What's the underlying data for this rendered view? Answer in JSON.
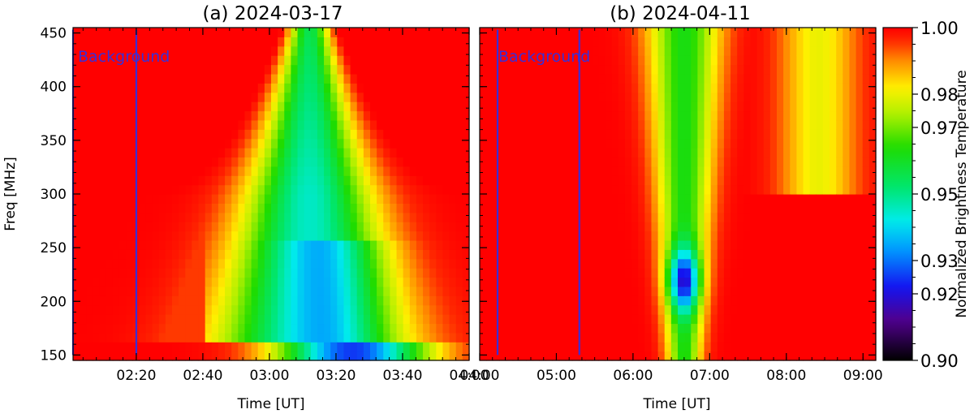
{
  "chart_data": [
    {
      "type": "heatmap",
      "title": "(a) 2024-03-17",
      "xlabel": "Time [UT]",
      "ylabel": "Freq [MHz]",
      "xlim_minutes": [
        121,
        240
      ],
      "ylim": [
        145,
        455
      ],
      "x_ticks": [
        {
          "value": 140,
          "label": "02:20"
        },
        {
          "value": 160,
          "label": "02:40"
        },
        {
          "value": 180,
          "label": "03:00"
        },
        {
          "value": 200,
          "label": "03:20"
        },
        {
          "value": 220,
          "label": "03:40"
        },
        {
          "value": 240,
          "label": "04:00"
        }
      ],
      "y_ticks": [
        150,
        200,
        250,
        300,
        350,
        400,
        450
      ],
      "annotation": {
        "text": "Background",
        "interval_minutes": [
          121,
          140
        ]
      },
      "background_lines_minutes": [
        121,
        140
      ],
      "dip": {
        "center_minutes": 192,
        "half_width_minutes": 28,
        "min_value": 0.93,
        "low_freq_min_value": 0.925
      }
    },
    {
      "type": "heatmap",
      "title": "(b) 2024-04-11",
      "xlabel": "Time [UT]",
      "ylabel": "",
      "xlim_minutes": [
        240,
        550
      ],
      "ylim": [
        145,
        455
      ],
      "x_ticks": [
        {
          "value": 240,
          "label": "04:00"
        },
        {
          "value": 300,
          "label": "05:00"
        },
        {
          "value": 360,
          "label": "06:00"
        },
        {
          "value": 420,
          "label": "07:00"
        },
        {
          "value": 480,
          "label": "08:00"
        },
        {
          "value": 540,
          "label": "09:00"
        }
      ],
      "y_ticks": [
        150,
        200,
        250,
        300,
        350,
        400,
        450
      ],
      "annotation": {
        "text": "Background",
        "interval_minutes": [
          254,
          318
        ]
      },
      "background_lines_minutes": [
        254,
        318
      ],
      "dip": {
        "center_minutes": 400,
        "half_width_minutes": 22,
        "min_value": 0.925,
        "low_freq_min_value": 0.93
      }
    }
  ],
  "colorbar": {
    "label": "Normalized Brightness Temperature",
    "range": [
      0.9,
      1.0
    ],
    "tick_labels": [
      "1.00",
      "0.98",
      "0.97",
      "0.95",
      "0.93",
      "0.92",
      "0.90"
    ],
    "tick_values": [
      1.0,
      0.98,
      0.97,
      0.95,
      0.93,
      0.92,
      0.9
    ],
    "colormap": "rainbow"
  },
  "colors": {
    "background_line": "#3a2fd6",
    "axes": "#000000"
  }
}
